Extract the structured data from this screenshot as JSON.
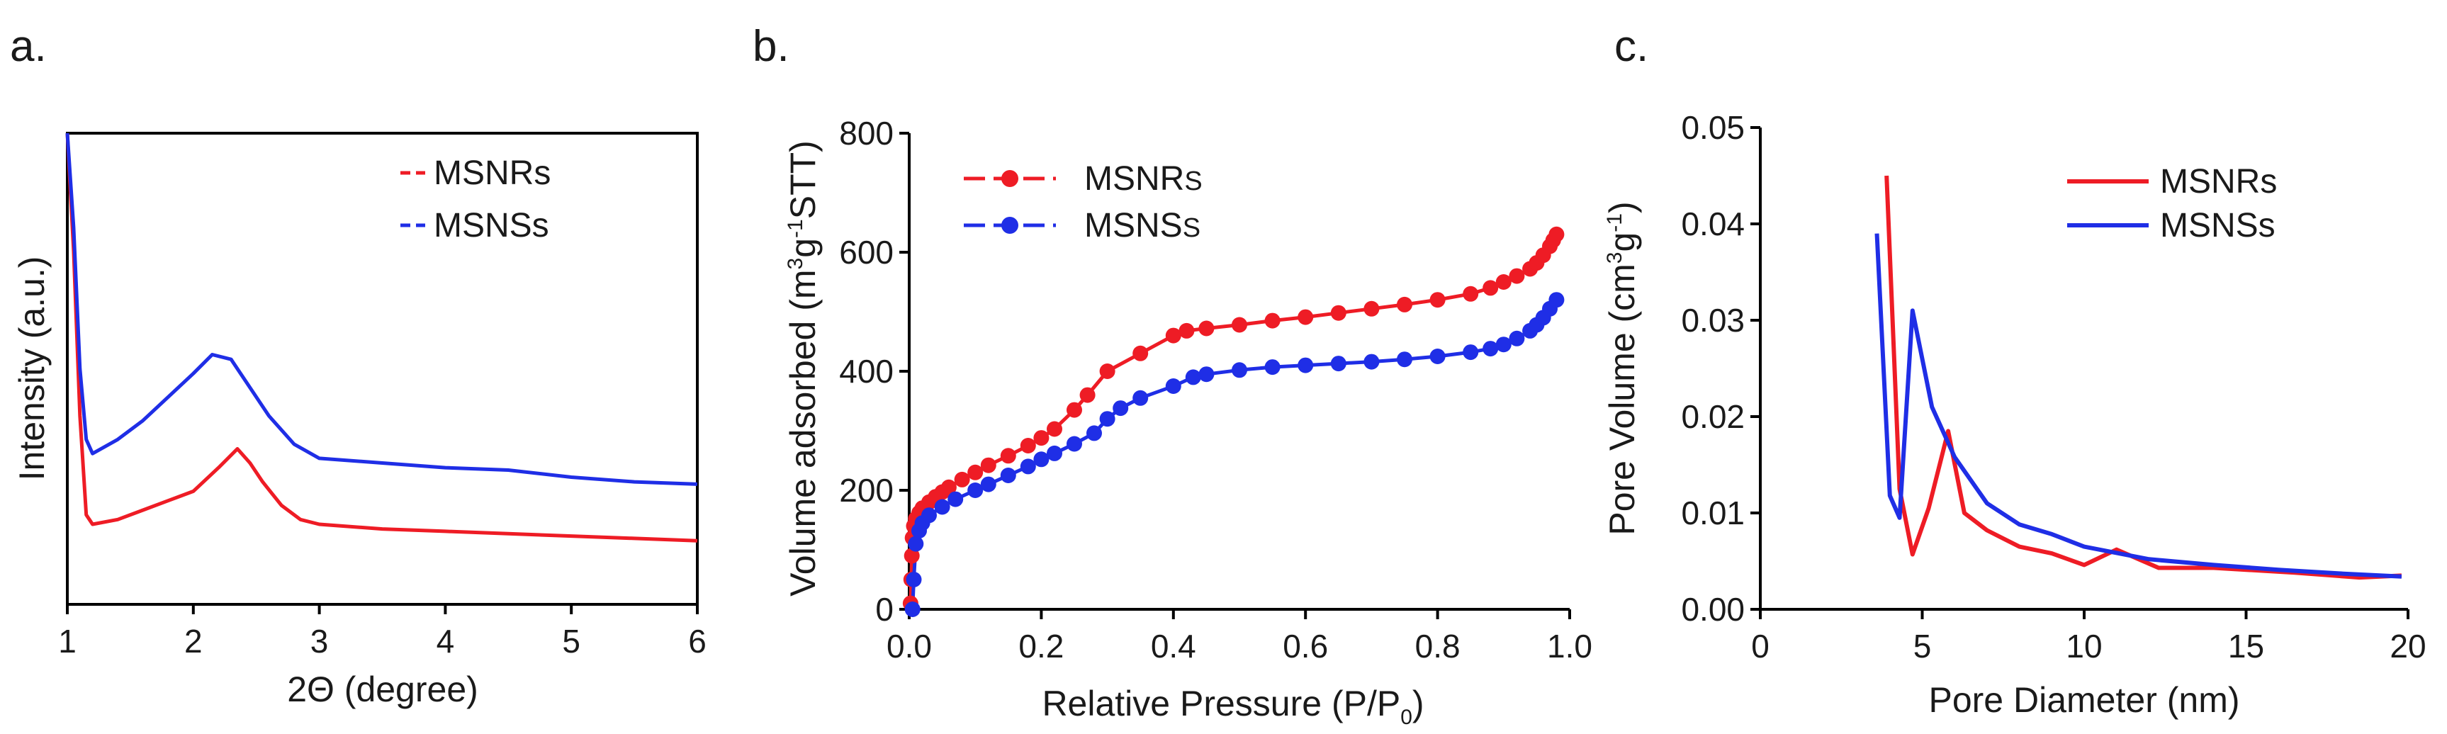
{
  "figure": {
    "panels": [
      {
        "id": "a",
        "label": "a."
      },
      {
        "id": "b",
        "label": "b."
      },
      {
        "id": "c",
        "label": "c."
      }
    ]
  },
  "colors": {
    "red": "#ee1c25",
    "blue": "#1f2ee6",
    "axis": "#000000"
  },
  "chart_data": [
    {
      "panel": "a",
      "type": "line",
      "title": "",
      "xlabel": "2Θ (degree)",
      "ylabel": "Intensity (a.u.)",
      "xlim": [
        1,
        6
      ],
      "ylim": [
        0,
        1
      ],
      "xticks": [
        1,
        2,
        3,
        4,
        5,
        6
      ],
      "yticks": [],
      "legend": "top-right",
      "series": [
        {
          "name": "MSNRs",
          "color": "#ee1c25",
          "style": "dashed-legend-line",
          "x": [
            1.0,
            1.05,
            1.1,
            1.15,
            1.2,
            1.4,
            1.6,
            1.8,
            2.0,
            2.2,
            2.35,
            2.45,
            2.55,
            2.7,
            2.85,
            3.0,
            3.5,
            4.0,
            4.5,
            5.0,
            5.5,
            6.0
          ],
          "y": [
            1.0,
            0.75,
            0.4,
            0.19,
            0.17,
            0.18,
            0.2,
            0.22,
            0.24,
            0.29,
            0.33,
            0.3,
            0.26,
            0.21,
            0.18,
            0.17,
            0.16,
            0.155,
            0.15,
            0.145,
            0.14,
            0.135
          ]
        },
        {
          "name": "MSNSs",
          "color": "#1f2ee6",
          "style": "dashed-legend-line",
          "x": [
            1.0,
            1.05,
            1.1,
            1.15,
            1.2,
            1.4,
            1.6,
            1.8,
            2.0,
            2.15,
            2.3,
            2.45,
            2.6,
            2.8,
            3.0,
            3.5,
            4.0,
            4.5,
            5.0,
            5.5,
            6.0
          ],
          "y": [
            1.0,
            0.8,
            0.5,
            0.35,
            0.32,
            0.35,
            0.39,
            0.44,
            0.49,
            0.53,
            0.52,
            0.46,
            0.4,
            0.34,
            0.31,
            0.3,
            0.29,
            0.285,
            0.27,
            0.26,
            0.255
          ]
        }
      ]
    },
    {
      "panel": "b",
      "type": "line",
      "title": "",
      "xlabel": "Relative Pressure (P/P0)",
      "xlabel_main": "Relative Pressure (P/P",
      "xlabel_sub": "0",
      "xlabel_tail": ")",
      "ylabel": "Volume adsorbed (m3g-1STT)",
      "ylabel_main": "Volume adsorbed (m",
      "ylabel_sup1": "3",
      "ylabel_mid": "g",
      "ylabel_sup2": "-1",
      "ylabel_tail": "STT)",
      "xlim": [
        0,
        1.0
      ],
      "ylim": [
        0,
        800
      ],
      "xticks": [
        0.0,
        0.2,
        0.4,
        0.6,
        0.8,
        1.0
      ],
      "xtick_labels": [
        "0.0",
        "0.2",
        "0.4",
        "0.6",
        "0.8",
        "1.0"
      ],
      "yticks": [
        0,
        200,
        400,
        600,
        800
      ],
      "legend": "top-left",
      "series": [
        {
          "name": "MSNRs",
          "legend_main": "MSNR",
          "legend_small": "S",
          "color": "#ee1c25",
          "markers": true,
          "x": [
            0.002,
            0.003,
            0.004,
            0.005,
            0.007,
            0.01,
            0.015,
            0.02,
            0.03,
            0.04,
            0.05,
            0.06,
            0.08,
            0.1,
            0.12,
            0.15,
            0.18,
            0.2,
            0.22,
            0.25,
            0.27,
            0.3,
            0.35,
            0.4,
            0.42,
            0.45,
            0.5,
            0.55,
            0.6,
            0.65,
            0.7,
            0.75,
            0.8,
            0.85,
            0.88,
            0.9,
            0.92,
            0.94,
            0.95,
            0.96,
            0.97,
            0.975,
            0.98
          ],
          "y": [
            10,
            50,
            90,
            120,
            140,
            152,
            162,
            170,
            180,
            189,
            197,
            205,
            218,
            230,
            242,
            258,
            275,
            288,
            303,
            335,
            360,
            400,
            430,
            460,
            468,
            472,
            478,
            485,
            491,
            498,
            505,
            512,
            520,
            530,
            540,
            550,
            560,
            572,
            582,
            595,
            610,
            620,
            630
          ]
        },
        {
          "name": "MSNSs",
          "legend_main": "MSNS",
          "legend_small": "S",
          "color": "#1f2ee6",
          "markers": true,
          "x": [
            0.005,
            0.007,
            0.01,
            0.015,
            0.02,
            0.03,
            0.05,
            0.07,
            0.1,
            0.12,
            0.15,
            0.18,
            0.2,
            0.22,
            0.25,
            0.28,
            0.3,
            0.32,
            0.35,
            0.4,
            0.43,
            0.45,
            0.5,
            0.55,
            0.6,
            0.65,
            0.7,
            0.75,
            0.8,
            0.85,
            0.88,
            0.9,
            0.92,
            0.94,
            0.95,
            0.96,
            0.97,
            0.98
          ],
          "y": [
            0,
            50,
            110,
            132,
            145,
            158,
            172,
            185,
            200,
            210,
            225,
            240,
            252,
            262,
            278,
            296,
            320,
            338,
            355,
            375,
            390,
            395,
            402,
            407,
            410,
            413,
            416,
            420,
            425,
            432,
            438,
            445,
            455,
            468,
            478,
            490,
            505,
            520
          ]
        }
      ]
    },
    {
      "panel": "c",
      "type": "line",
      "title": "",
      "xlabel": "Pore Diameter (nm)",
      "ylabel": "Pore Volume (cm3g-1)",
      "ylabel_main": "Pore Volume (cm",
      "ylabel_sup1": "3",
      "ylabel_mid": "g",
      "ylabel_sup2": "-1",
      "ylabel_tail": ")",
      "xlim": [
        0,
        20
      ],
      "ylim": [
        0,
        0.05
      ],
      "xticks": [
        0,
        5,
        10,
        15,
        20
      ],
      "xtick_labels": [
        "0",
        "5",
        "10",
        "15",
        "20"
      ],
      "yticks": [
        0.0,
        0.01,
        0.02,
        0.03,
        0.04,
        0.05
      ],
      "ytick_labels": [
        "0.00",
        "0.01",
        "0.02",
        "0.03",
        "0.04",
        "0.05"
      ],
      "legend": "top-right",
      "series": [
        {
          "name": "MSNRs",
          "color": "#ee1c25",
          "x": [
            3.9,
            4.3,
            4.7,
            5.2,
            5.8,
            6.3,
            7.0,
            8.0,
            9.0,
            10.0,
            11.0,
            12.3,
            14.0,
            16.5,
            18.5,
            19.8
          ],
          "y": [
            0.045,
            0.0125,
            0.0057,
            0.0105,
            0.0185,
            0.01,
            0.0082,
            0.0065,
            0.0058,
            0.0046,
            0.0062,
            0.0043,
            0.0043,
            0.0038,
            0.0033,
            0.0035
          ]
        },
        {
          "name": "MSNSs",
          "color": "#1f2ee6",
          "x": [
            3.6,
            4.0,
            4.3,
            4.7,
            5.3,
            6.0,
            7.0,
            8.0,
            9.0,
            10.0,
            12.0,
            14.0,
            16.0,
            18.0,
            19.8
          ],
          "y": [
            0.039,
            0.0118,
            0.0095,
            0.031,
            0.021,
            0.0158,
            0.011,
            0.0088,
            0.0078,
            0.0065,
            0.0052,
            0.0046,
            0.0041,
            0.0037,
            0.0034
          ]
        }
      ]
    }
  ]
}
